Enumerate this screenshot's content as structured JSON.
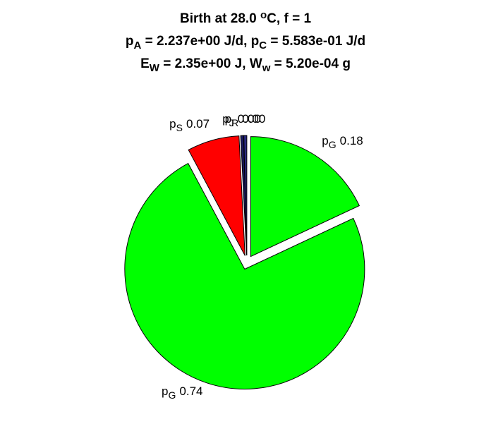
{
  "chart_data": {
    "type": "pie",
    "title": [
      [
        {
          "text": "Birth at 28.0 "
        },
        {
          "text": "o",
          "sup": true
        },
        {
          "text": "C, f = 1"
        }
      ],
      [
        {
          "text": "p"
        },
        {
          "text": "A",
          "sub": true
        },
        {
          "text": " = 2.237e+00 J/d, p"
        },
        {
          "text": "C",
          "sub": true
        },
        {
          "text": " = 5.583e-01 J/d"
        }
      ],
      [
        {
          "text": "E"
        },
        {
          "text": "W",
          "sub": true
        },
        {
          "text": " = 2.35e+00 J, W"
        },
        {
          "text": "w",
          "sub": true
        },
        {
          "text": " = 5.20e-04 g"
        }
      ]
    ],
    "categories": [
      {
        "symbol": "p",
        "subscript": "G"
      },
      {
        "symbol": "p",
        "subscript": "G"
      },
      {
        "symbol": "p",
        "subscript": "S"
      },
      {
        "symbol": "p",
        "subscript": "J"
      },
      {
        "symbol": "p",
        "subscript": "R"
      }
    ],
    "values": [
      0.18,
      0.74,
      0.07,
      0.004,
      0.004
    ],
    "value_labels": [
      "0.18",
      "0.74",
      "0.07",
      "0.00",
      "0.00"
    ],
    "colors": [
      "#00ff00",
      "#00ff00",
      "#ff0000",
      "#1a1a5e",
      "#2a2a80"
    ],
    "exploded": true
  }
}
